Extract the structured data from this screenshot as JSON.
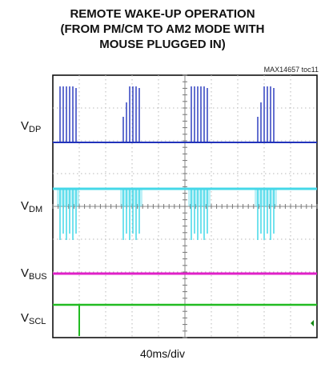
{
  "title": {
    "line1": "REMOTE WAKE-UP OPERATION",
    "line2": "(FROM PM/CM TO AM2 MODE WITH",
    "line3": "MOUSE PLUGGED IN)"
  },
  "figure_id": "MAX14657 toc11",
  "timebase": "40ms/div",
  "chart_data": {
    "type": "line",
    "grid": true,
    "grid_divisions": {
      "x": 10,
      "y": 8
    },
    "channels": [
      {
        "name": "V",
        "subscript": "DP",
        "color": "#2233bb",
        "signal": "positive pulse bursts",
        "bursts": 4
      },
      {
        "name": "V",
        "subscript": "DM",
        "color": "#44d8e8",
        "signal": "negative pulse bursts",
        "bursts": 4
      },
      {
        "name": "V",
        "subscript": "BUS",
        "color": "#e020c8",
        "signal": "constant"
      },
      {
        "name": "V",
        "subscript": "SCL",
        "color": "#22bb22",
        "signal": "single low-to-high step"
      }
    ]
  }
}
